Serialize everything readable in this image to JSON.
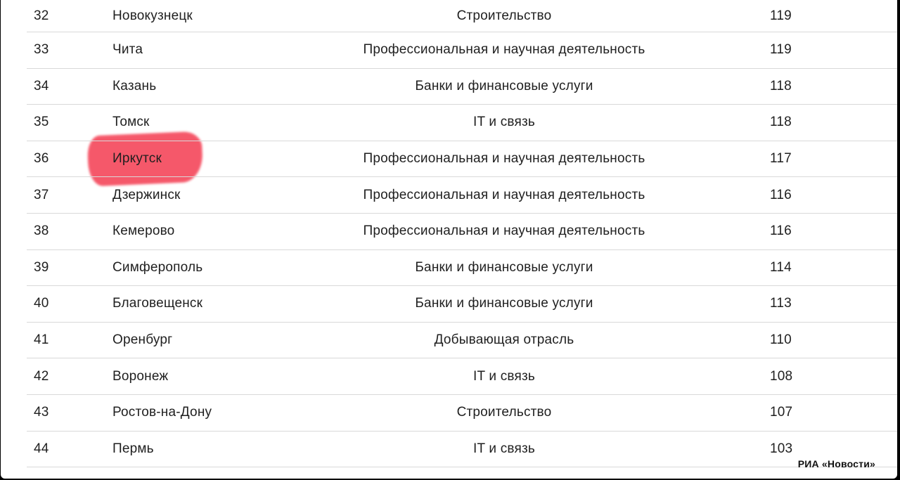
{
  "table": {
    "rows": [
      {
        "rank": "32",
        "city": "Новокузнецк",
        "industry": "Строительство",
        "value": "119"
      },
      {
        "rank": "33",
        "city": "Чита",
        "industry": "Профессиональная и научная деятельность",
        "value": "119"
      },
      {
        "rank": "34",
        "city": "Казань",
        "industry": "Банки и финансовые услуги",
        "value": "118"
      },
      {
        "rank": "35",
        "city": "Томск",
        "industry": "IT и связь",
        "value": "118"
      },
      {
        "rank": "36",
        "city": "Иркутск",
        "industry": "Профессиональная и научная деятельность",
        "value": "117"
      },
      {
        "rank": "37",
        "city": "Дзержинск",
        "industry": "Профессиональная и научная деятельность",
        "value": "116"
      },
      {
        "rank": "38",
        "city": "Кемерово",
        "industry": "Профессиональная и научная деятельность",
        "value": "116"
      },
      {
        "rank": "39",
        "city": "Симферополь",
        "industry": "Банки и финансовые услуги",
        "value": "114"
      },
      {
        "rank": "40",
        "city": "Благовещенск",
        "industry": "Банки и финансовые услуги",
        "value": "113"
      },
      {
        "rank": "41",
        "city": "Оренбург",
        "industry": "Добывающая отрасль",
        "value": "110"
      },
      {
        "rank": "42",
        "city": "Воронеж",
        "industry": "IT и связь",
        "value": "108"
      },
      {
        "rank": "43",
        "city": "Ростов-на-Дону",
        "industry": "Строительство",
        "value": "107"
      },
      {
        "rank": "44",
        "city": "Пермь",
        "industry": "IT и связь",
        "value": "103"
      }
    ]
  },
  "highlight": {
    "city": "Иркутск",
    "color": "#f55063"
  },
  "watermark": "РИА «Новости»"
}
